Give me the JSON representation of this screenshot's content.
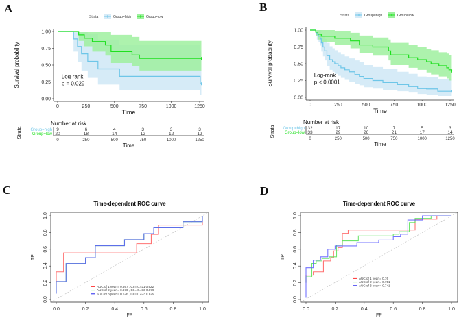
{
  "chart_data": [
    {
      "panel": "A",
      "type": "line",
      "subtype": "kaplan-meier",
      "title": "",
      "xlabel": "Time",
      "ylabel": "Survival probability",
      "xlim": [
        0,
        1250
      ],
      "ylim": [
        0,
        1
      ],
      "xticks": [
        "0",
        "250",
        "500",
        "750",
        "1000",
        "1250"
      ],
      "yticks": [
        "0.00",
        "0.25",
        "0.50",
        "0.75",
        "1.00"
      ],
      "legend_title": "Strata",
      "legend": [
        "Group=high",
        "Group=low"
      ],
      "legend_position": "top",
      "annotation": [
        "Log-rank",
        "p = 0.029"
      ],
      "colors": {
        "high": "#6ec6e8",
        "low": "#1ee01e",
        "high_band": "#d6ebf7",
        "low_band": "#9ff09f"
      },
      "series": [
        {
          "name": "Group=high",
          "x": [
            0,
            140,
            175,
            210,
            265,
            355,
            545,
            1255,
            1265
          ],
          "y": [
            1.0,
            0.889,
            0.778,
            0.667,
            0.556,
            0.444,
            0.333,
            0.222,
            0.222
          ],
          "lower": [
            1.0,
            0.7,
            0.55,
            0.42,
            0.31,
            0.21,
            0.13,
            0.06,
            0.06
          ],
          "upper": [
            1.0,
            1.0,
            1.0,
            1.0,
            0.96,
            0.88,
            0.8,
            0.72,
            0.72
          ]
        },
        {
          "name": "Group=low",
          "x": [
            0,
            185,
            235,
            305,
            420,
            470,
            655,
            720,
            1265
          ],
          "y": [
            1.0,
            0.95,
            0.9,
            0.85,
            0.8,
            0.7,
            0.65,
            0.6,
            0.6
          ],
          "lower": [
            1.0,
            0.86,
            0.78,
            0.7,
            0.64,
            0.53,
            0.48,
            0.42,
            0.42
          ],
          "upper": [
            1.0,
            1.0,
            1.0,
            1.0,
            0.99,
            0.95,
            0.92,
            0.86,
            0.86
          ]
        }
      ],
      "risk_table": {
        "title": "Number at risk",
        "ylabel": "Strata",
        "xlabel": "Time",
        "times": [
          "0",
          "250",
          "500",
          "750",
          "1000",
          "1250"
        ],
        "rows": [
          {
            "name": "Group=high",
            "values": [
              "9",
              "6",
              "4",
              "3",
              "3",
              "3"
            ]
          },
          {
            "name": "Group=low",
            "values": [
              "20",
              "18",
              "14",
              "12",
              "12",
              "12"
            ]
          }
        ]
      }
    },
    {
      "panel": "B",
      "type": "line",
      "subtype": "kaplan-meier",
      "title": "",
      "xlabel": "Time",
      "ylabel": "Survival probability",
      "xlim": [
        0,
        1250
      ],
      "ylim": [
        0,
        1
      ],
      "xticks": [
        "0",
        "250",
        "500",
        "750",
        "1000",
        "1250"
      ],
      "yticks": [
        "0.00",
        "0.25",
        "0.50",
        "0.75",
        "1.00"
      ],
      "legend_title": "Strata",
      "legend": [
        "Group=high",
        "Group=low"
      ],
      "legend_position": "top",
      "annotation": [
        "Log-rank",
        "p < 0.0001"
      ],
      "colors": {
        "high": "#6ec6e8",
        "low": "#1ee01e",
        "high_band": "#d6ebf7",
        "low_band": "#9ff09f"
      },
      "series": [
        {
          "name": "Group=high",
          "x": [
            0,
            50,
            60,
            75,
            90,
            100,
            115,
            130,
            150,
            175,
            200,
            220,
            250,
            275,
            310,
            350,
            400,
            440,
            480,
            560,
            650,
            780,
            880,
            960,
            1040,
            1140,
            1265
          ],
          "y": [
            1.0,
            0.97,
            0.94,
            0.91,
            0.87,
            0.81,
            0.75,
            0.69,
            0.62,
            0.56,
            0.53,
            0.5,
            0.47,
            0.44,
            0.41,
            0.38,
            0.34,
            0.31,
            0.28,
            0.25,
            0.22,
            0.19,
            0.16,
            0.13,
            0.125,
            0.09,
            0.09
          ],
          "lower": [
            1.0,
            0.91,
            0.86,
            0.82,
            0.77,
            0.68,
            0.61,
            0.55,
            0.47,
            0.41,
            0.38,
            0.35,
            0.32,
            0.29,
            0.26,
            0.23,
            0.2,
            0.18,
            0.15,
            0.13,
            0.11,
            0.09,
            0.07,
            0.05,
            0.04,
            0.02,
            0.02
          ],
          "upper": [
            1.0,
            1.0,
            1.0,
            1.0,
            1.0,
            0.95,
            0.92,
            0.87,
            0.81,
            0.76,
            0.73,
            0.7,
            0.67,
            0.64,
            0.61,
            0.58,
            0.55,
            0.52,
            0.48,
            0.45,
            0.42,
            0.38,
            0.35,
            0.31,
            0.3,
            0.27,
            0.27
          ]
        },
        {
          "name": "Group=low",
          "x": [
            0,
            50,
            70,
            100,
            220,
            360,
            440,
            560,
            700,
            720,
            880,
            960,
            1040,
            1080,
            1150,
            1220,
            1240,
            1265
          ],
          "y": [
            1.0,
            0.97,
            0.94,
            0.91,
            0.88,
            0.84,
            0.78,
            0.75,
            0.69,
            0.63,
            0.59,
            0.56,
            0.53,
            0.5,
            0.47,
            0.44,
            0.41,
            0.39
          ],
          "lower": [
            1.0,
            0.91,
            0.86,
            0.82,
            0.78,
            0.73,
            0.66,
            0.62,
            0.55,
            0.48,
            0.44,
            0.41,
            0.37,
            0.34,
            0.31,
            0.28,
            0.25,
            0.23
          ],
          "upper": [
            1.0,
            1.0,
            1.0,
            1.0,
            0.99,
            0.96,
            0.92,
            0.89,
            0.86,
            0.81,
            0.78,
            0.75,
            0.72,
            0.7,
            0.67,
            0.65,
            0.63,
            0.61
          ]
        }
      ],
      "risk_table": {
        "title": "Number at risk",
        "ylabel": "Strata",
        "xlabel": "Time",
        "times": [
          "0",
          "250",
          "500",
          "750",
          "1000",
          "1250"
        ],
        "rows": [
          {
            "name": "Group=high",
            "values": [
              "32",
              "17",
              "10",
              "7",
              "5",
              "3"
            ]
          },
          {
            "name": "Group=low",
            "values": [
              "33",
              "29",
              "26",
              "21",
              "17",
              "14"
            ]
          }
        ]
      }
    },
    {
      "panel": "C",
      "type": "line",
      "subtype": "roc",
      "title": "Time-dependent ROC curve",
      "xlabel": "FP",
      "ylabel": "TP",
      "xlim": [
        0,
        1
      ],
      "ylim": [
        0,
        1
      ],
      "xticks": [
        "0.0",
        "0.2",
        "0.4",
        "0.6",
        "0.8",
        "1.0"
      ],
      "yticks": [
        "0.0",
        "0.2",
        "0.4",
        "0.6",
        "0.8",
        "1.0"
      ],
      "legend_position": "bottom-right",
      "legend": [
        "AUC of 1 year = 0.667 , CI =  0.411 0.922",
        "AUC of 2 year = 0.676 , CI =  0.473 0.879",
        "AUC of 3 year = 0.676 , CI =  0.473 0.879"
      ],
      "series": [
        {
          "name": "AUC of 1 year",
          "color": "#ff5a5a",
          "x": [
            0,
            0,
            0.05,
            0.05,
            0.55,
            0.55,
            0.65,
            0.65,
            0.7,
            0.7,
            1.0,
            1.0
          ],
          "y": [
            0.2,
            0.33,
            0.33,
            0.556,
            0.556,
            0.667,
            0.667,
            0.778,
            0.778,
            0.889,
            0.889,
            0.95
          ]
        },
        {
          "name": "AUC of 2 year",
          "color": "#55e055",
          "x": [
            0,
            0,
            0.067,
            0.067,
            0.2,
            0.2,
            0.267,
            0.267,
            0.467,
            0.467,
            0.6,
            0.6,
            0.667,
            0.667,
            0.867,
            0.867,
            1.0,
            1.0
          ],
          "y": [
            0.07,
            0.214,
            0.214,
            0.429,
            0.429,
            0.5,
            0.5,
            0.643,
            0.643,
            0.714,
            0.714,
            0.786,
            0.786,
            0.857,
            0.857,
            0.929,
            0.929,
            1.0
          ]
        },
        {
          "name": "AUC of 3 year",
          "color": "#5a5aff",
          "x": [
            0,
            0,
            0.067,
            0.067,
            0.2,
            0.2,
            0.267,
            0.267,
            0.467,
            0.467,
            0.6,
            0.6,
            0.667,
            0.667,
            0.867,
            0.867,
            1.0,
            1.0
          ],
          "y": [
            0.07,
            0.214,
            0.214,
            0.429,
            0.429,
            0.5,
            0.5,
            0.643,
            0.643,
            0.714,
            0.714,
            0.786,
            0.786,
            0.857,
            0.857,
            0.929,
            0.929,
            1.0
          ]
        }
      ]
    },
    {
      "panel": "D",
      "type": "line",
      "subtype": "roc",
      "title": "Time-dependent ROC curve",
      "xlabel": "FP",
      "ylabel": "TP",
      "xlim": [
        0,
        1
      ],
      "ylim": [
        0,
        1
      ],
      "xticks": [
        "0.0",
        "0.2",
        "0.4",
        "0.6",
        "0.8",
        "1.0"
      ],
      "yticks": [
        "0.0",
        "0.2",
        "0.4",
        "0.6",
        "0.8",
        "1.0"
      ],
      "legend_position": "bottom-right",
      "legend": [
        "AUC of 1 year = 0.76",
        "AUC of 2 year = 0.751",
        "AUC of 3 year = 0.741"
      ],
      "series": [
        {
          "name": "AUC of 1 year",
          "color": "#ff5a5a",
          "x": [
            0,
            0,
            0.05,
            0.05,
            0.12,
            0.12,
            0.17,
            0.17,
            0.19,
            0.19,
            0.22,
            0.22,
            0.25,
            0.25,
            0.27,
            0.27,
            0.29,
            0.29,
            0.75,
            0.75,
            0.9,
            0.9,
            1.0
          ],
          "y": [
            0.2,
            0.29,
            0.29,
            0.33,
            0.33,
            0.46,
            0.46,
            0.5,
            0.5,
            0.58,
            0.58,
            0.62,
            0.62,
            0.79,
            0.79,
            0.79,
            0.79,
            0.83,
            0.83,
            0.96,
            0.96,
            1.0,
            1.0
          ]
        },
        {
          "name": "AUC of 2 year",
          "color": "#55e055",
          "x": [
            0,
            0,
            0.04,
            0.04,
            0.07,
            0.07,
            0.11,
            0.11,
            0.16,
            0.16,
            0.21,
            0.21,
            0.25,
            0.25,
            0.36,
            0.36,
            0.6,
            0.6,
            0.64,
            0.64,
            0.71,
            0.71,
            0.75,
            0.75,
            0.86,
            0.86,
            1.0
          ],
          "y": [
            0.2,
            0.27,
            0.27,
            0.43,
            0.43,
            0.46,
            0.46,
            0.49,
            0.49,
            0.51,
            0.51,
            0.65,
            0.65,
            0.7,
            0.7,
            0.76,
            0.76,
            0.78,
            0.78,
            0.81,
            0.81,
            0.92,
            0.92,
            0.97,
            0.97,
            1.0,
            1.0
          ]
        },
        {
          "name": "AUC of 3 year",
          "color": "#5a5aff",
          "x": [
            0,
            0,
            0.05,
            0.05,
            0.1,
            0.1,
            0.15,
            0.15,
            0.2,
            0.2,
            0.35,
            0.35,
            0.5,
            0.5,
            0.6,
            0.6,
            0.65,
            0.65,
            0.7,
            0.7,
            0.8,
            0.8,
            1.0
          ],
          "y": [
            0.02,
            0.38,
            0.38,
            0.47,
            0.47,
            0.51,
            0.51,
            0.6,
            0.6,
            0.64,
            0.64,
            0.68,
            0.68,
            0.71,
            0.71,
            0.75,
            0.75,
            0.78,
            0.78,
            0.95,
            0.95,
            1.0,
            1.0
          ]
        }
      ]
    }
  ],
  "panel_labels": [
    "A",
    "B",
    "C",
    "D"
  ]
}
